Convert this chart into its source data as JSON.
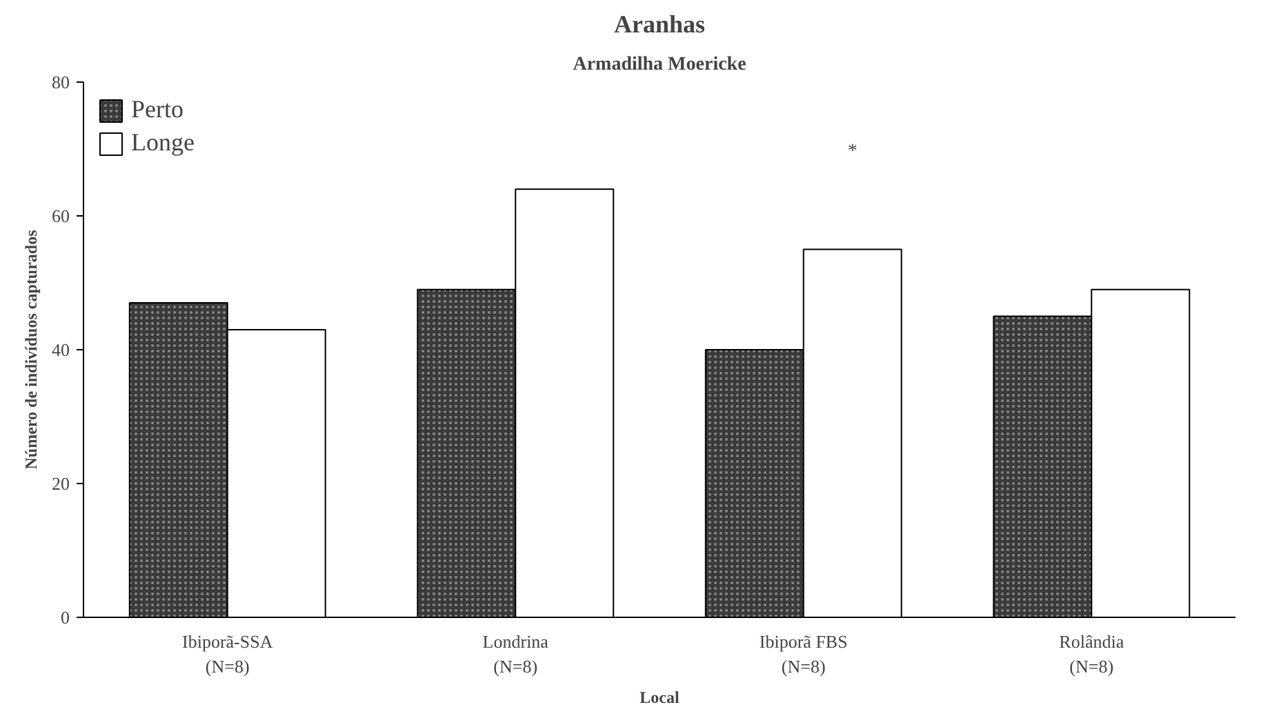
{
  "chart_data": {
    "type": "bar",
    "title": "Aranhas",
    "subtitle": "Armadilha Moericke",
    "xlabel": "Local",
    "ylabel": "Número de indivíduos capturados",
    "categories": [
      "Ibiporã-SSA",
      "Londrina",
      "Ibiporã FBS",
      "Rolândia"
    ],
    "series": [
      {
        "name": "Perto",
        "color": "#3a3a3a",
        "values": [
          47,
          49,
          40,
          45
        ]
      },
      {
        "name": "Longe",
        "color": "#ffffff",
        "values": [
          43,
          64,
          55,
          49
        ]
      }
    ],
    "ylim": [
      0,
      80
    ],
    "yticks": [
      0,
      20,
      40,
      60,
      80
    ],
    "grid": false,
    "legend": "top left",
    "annotations": [
      "*",
      "(N=8)",
      "(N=8)",
      "(N=8)",
      "(N=8)"
    ]
  }
}
